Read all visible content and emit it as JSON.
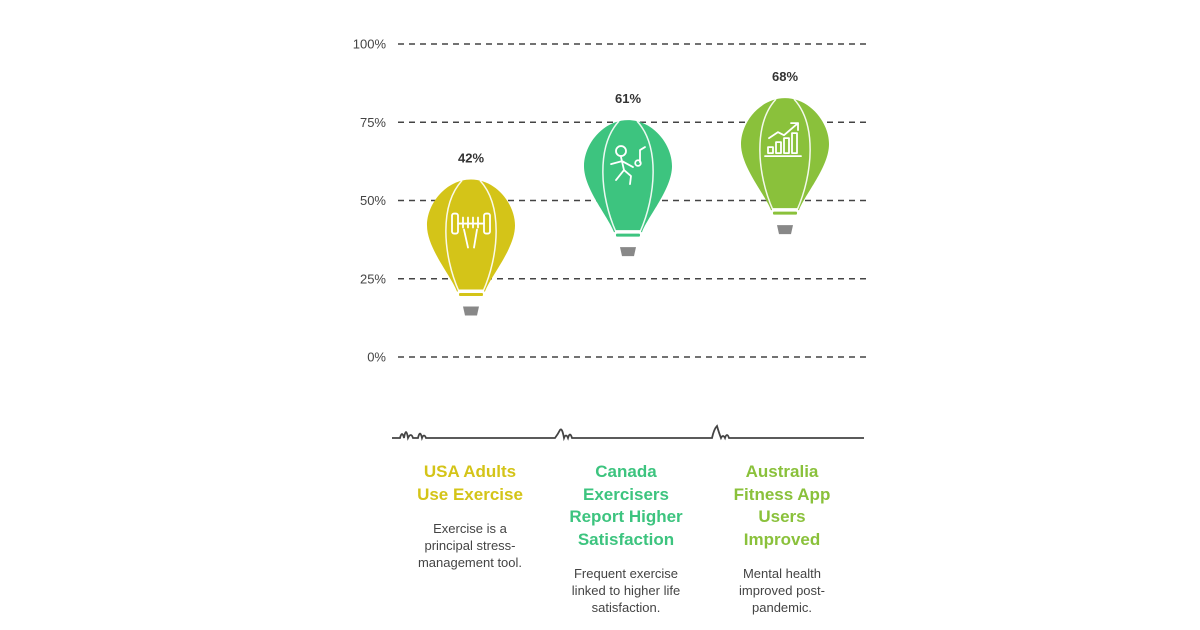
{
  "chart_data": {
    "type": "bar",
    "categories": [
      "USA Adults Use Exercise",
      "Canada Exercisers Report Higher Satisfaction",
      "Australia Fitness App Users Improved"
    ],
    "values": [
      42,
      61,
      68
    ],
    "value_labels": [
      "42%",
      "61%",
      "68%"
    ],
    "ylim": [
      0,
      100
    ],
    "yticks": [
      0,
      25,
      50,
      75,
      100
    ],
    "ytick_labels": [
      "0%",
      "25%",
      "50%",
      "75%",
      "100%"
    ],
    "grid": true,
    "mark": "hot-air-balloon",
    "title": "",
    "xlabel": "",
    "ylabel": ""
  },
  "items": [
    {
      "title_lines": [
        "USA Adults",
        "Use Exercise"
      ],
      "desc_lines": [
        "Exercise is a",
        "principal stress-",
        "management tool."
      ],
      "color": "#d4c418",
      "icon": "barbell-icon"
    },
    {
      "title_lines": [
        "Canada",
        "Exercisers",
        "Report Higher",
        "Satisfaction"
      ],
      "desc_lines": [
        "Frequent exercise",
        "linked to higher life",
        "satisfaction."
      ],
      "color": "#3dc47f",
      "icon": "running-person-icon"
    },
    {
      "title_lines": [
        "Australia",
        "Fitness App",
        "Users",
        "Improved"
      ],
      "desc_lines": [
        "Mental health",
        "improved post-",
        "pandemic."
      ],
      "color": "#8ac13b",
      "icon": "growth-chart-icon"
    }
  ]
}
